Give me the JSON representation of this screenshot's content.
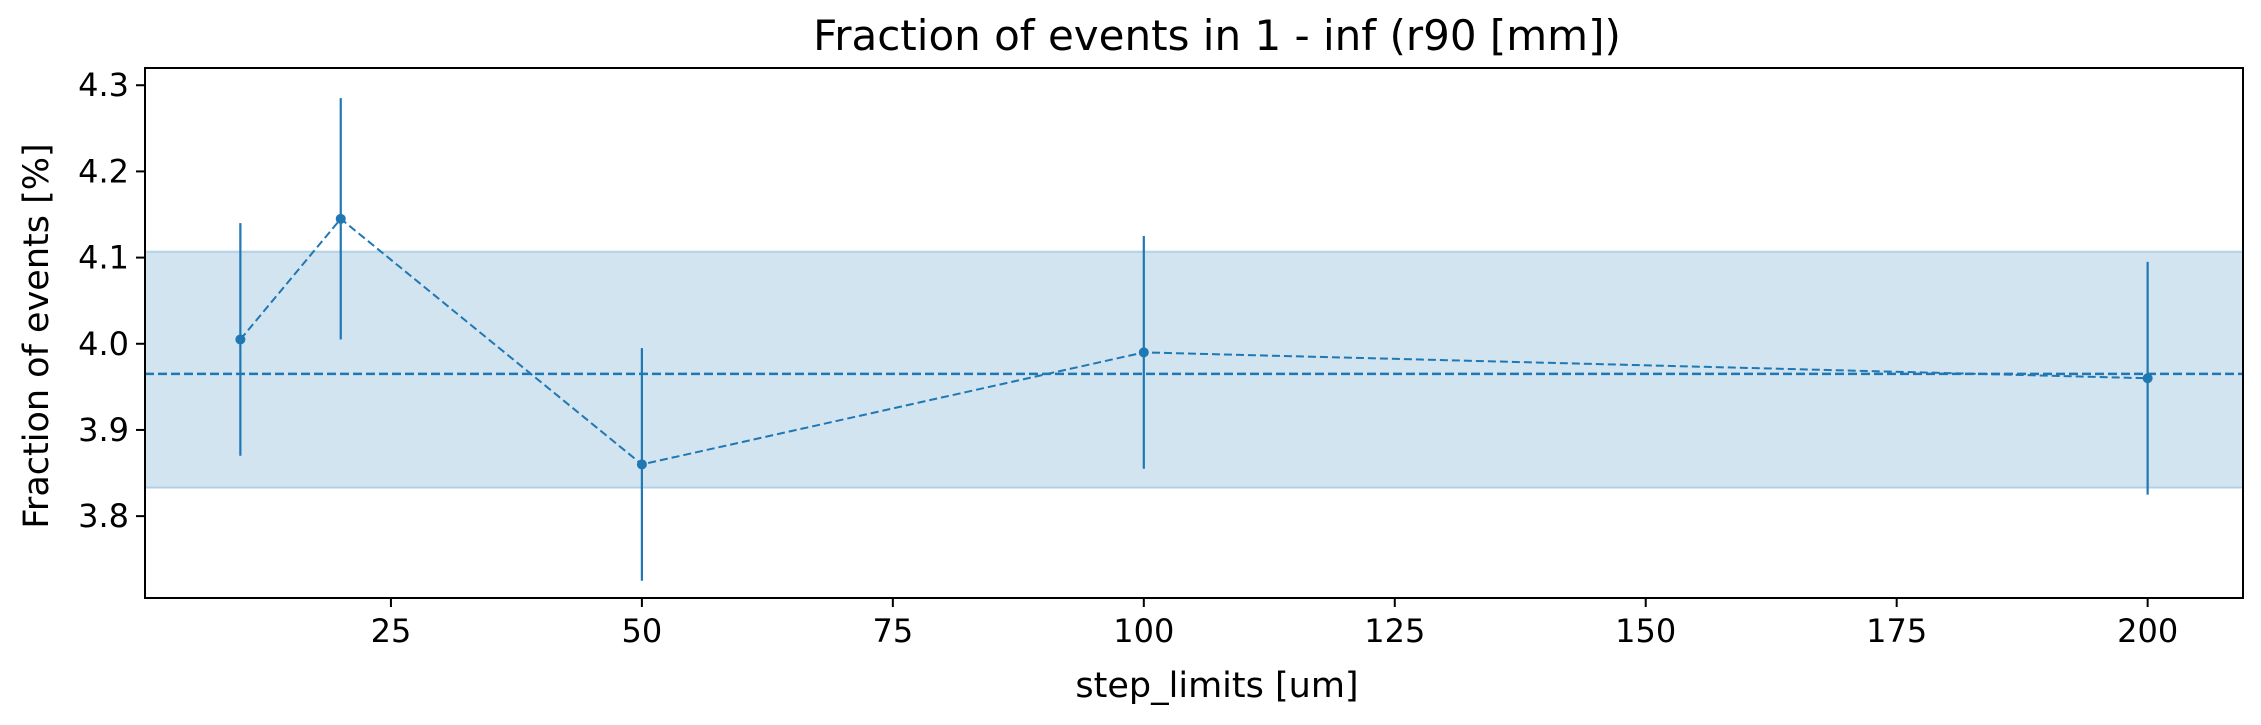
{
  "chart_data": {
    "type": "line",
    "title": "Fraction of events in 1 - inf (r90 [mm])",
    "xlabel": "step_limits [um]",
    "ylabel": "Fraction of events [%]",
    "xlim": [
      0.5,
      209.5
    ],
    "ylim": [
      3.705,
      4.32
    ],
    "xticks": [
      25,
      50,
      75,
      100,
      125,
      150,
      175,
      200
    ],
    "yticks": [
      3.8,
      3.9,
      4.0,
      4.1,
      4.2,
      4.3
    ],
    "ytick_labels": [
      "3.8",
      "3.9",
      "4.0",
      "4.1",
      "4.2",
      "4.3"
    ],
    "grid": false,
    "series": [
      {
        "x": [
          10,
          20,
          50,
          100,
          200
        ],
        "y": [
          4.005,
          4.145,
          3.86,
          3.99,
          3.96
        ],
        "yerr": [
          0.135,
          0.14,
          0.135,
          0.135,
          0.135
        ],
        "linestyle": "dashed",
        "marker": "circle"
      }
    ],
    "reference_line": {
      "y": 3.965,
      "linestyle": "dashed"
    },
    "band": {
      "y_low": 3.833,
      "y_high": 4.107
    },
    "colors": {
      "series": "#1f77b4",
      "band": "#1f77b4"
    }
  }
}
